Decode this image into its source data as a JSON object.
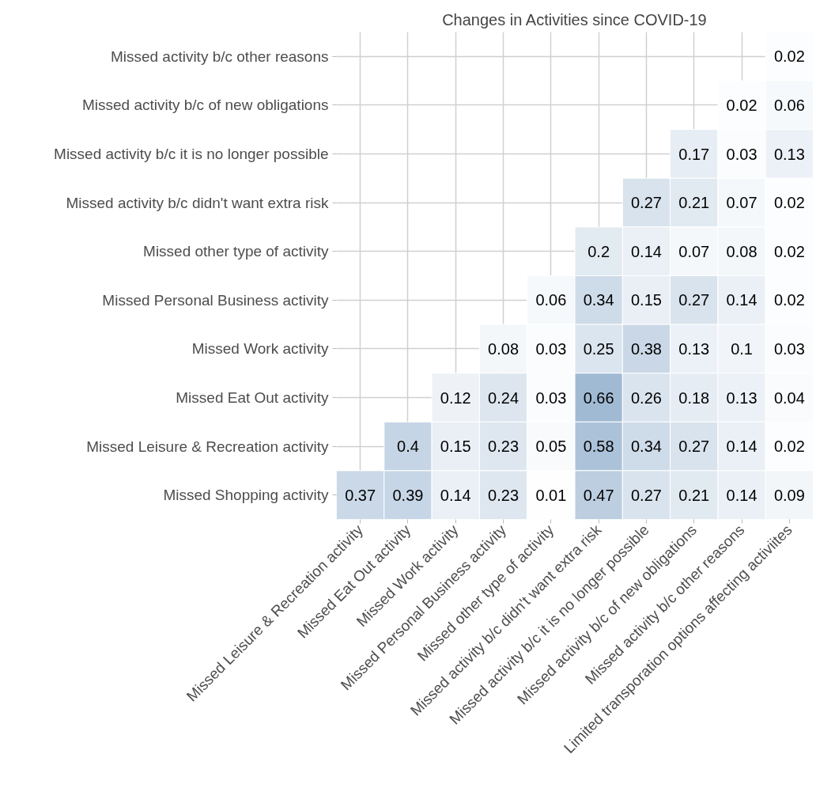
{
  "chart_data": {
    "type": "heatmap",
    "title": "Changes in Activities since COVID-19",
    "categories": [
      "Missed Leisure & Recreation activity",
      "Missed Eat Out activity",
      "Missed Work activity",
      "Missed Personal Business activity",
      "Missed other type of activity",
      "Missed activity b/c didn't want extra risk",
      "Missed activity b/c it is no longer possible",
      "Missed activity b/c of new obligations",
      "Missed activity b/c other reasons",
      "Limited transporation options affecting activiites"
    ],
    "y_categories": [
      "Missed activity b/c other reasons",
      "Missed activity b/c of new obligations",
      "Missed activity b/c it is no longer possible",
      "Missed activity b/c didn't want extra risk",
      "Missed other type of activity",
      "Missed Personal Business activity",
      "Missed Work activity",
      "Missed Eat Out activity",
      "Missed Leisure & Recreation activity",
      "Missed Shopping activity"
    ],
    "cells": [
      [
        null,
        null,
        null,
        null,
        null,
        null,
        null,
        null,
        null,
        0.02
      ],
      [
        null,
        null,
        null,
        null,
        null,
        null,
        null,
        null,
        0.02,
        0.06
      ],
      [
        null,
        null,
        null,
        null,
        null,
        null,
        null,
        0.17,
        0.03,
        0.13
      ],
      [
        null,
        null,
        null,
        null,
        null,
        null,
        0.27,
        0.21,
        0.07,
        0.02
      ],
      [
        null,
        null,
        null,
        null,
        null,
        0.2,
        0.14,
        0.07,
        0.08,
        0.02
      ],
      [
        null,
        null,
        null,
        null,
        0.06,
        0.34,
        0.15,
        0.27,
        0.14,
        0.02
      ],
      [
        null,
        null,
        null,
        0.08,
        0.03,
        0.25,
        0.38,
        0.13,
        0.1,
        0.03
      ],
      [
        null,
        null,
        0.12,
        0.24,
        0.03,
        0.66,
        0.26,
        0.18,
        0.13,
        0.04
      ],
      [
        null,
        0.4,
        0.15,
        0.23,
        0.05,
        0.58,
        0.34,
        0.27,
        0.14,
        0.02
      ],
      [
        0.37,
        0.39,
        0.14,
        0.23,
        0.01,
        0.47,
        0.27,
        0.21,
        0.14,
        0.09
      ]
    ],
    "data_labels": true,
    "grid": true
  }
}
